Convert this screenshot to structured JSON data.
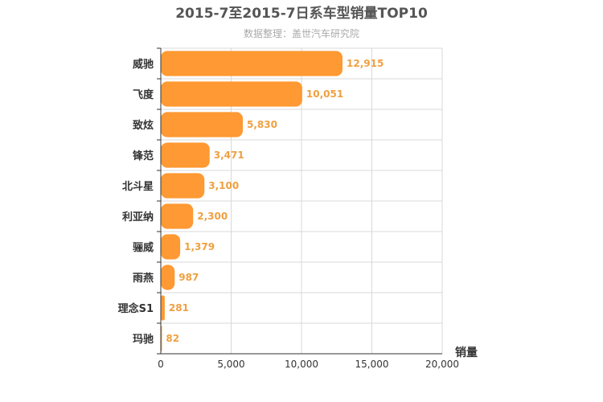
{
  "colors": {
    "bar": "#ff9933",
    "label": "#f0a040",
    "grid": "#d8d8d8",
    "axis": "#333333"
  },
  "chart_data": {
    "type": "bar",
    "orientation": "horizontal",
    "title": "2015-7至2015-7日系车型销量TOP10",
    "subtitle": "数据整理：盖世汽车研究院",
    "xlabel": "销量",
    "ylabel": "",
    "xlim": [
      0,
      20000
    ],
    "xticks": [
      0,
      5000,
      10000,
      15000,
      20000
    ],
    "xtick_labels": [
      "0",
      "5,000",
      "10,000",
      "15,000",
      "20,000"
    ],
    "grid": true,
    "legend": "none",
    "categories": [
      "威驰",
      "飞度",
      "致炫",
      "锋范",
      "北斗星",
      "利亚纳",
      "骊威",
      "雨燕",
      "理念S1",
      "玛驰"
    ],
    "values": [
      12915,
      10051,
      5830,
      3471,
      3100,
      2300,
      1379,
      987,
      281,
      82
    ],
    "value_labels": [
      "12,915",
      "10,051",
      "5,830",
      "3,471",
      "3,100",
      "2,300",
      "1,379",
      "987",
      "281",
      "82"
    ]
  }
}
